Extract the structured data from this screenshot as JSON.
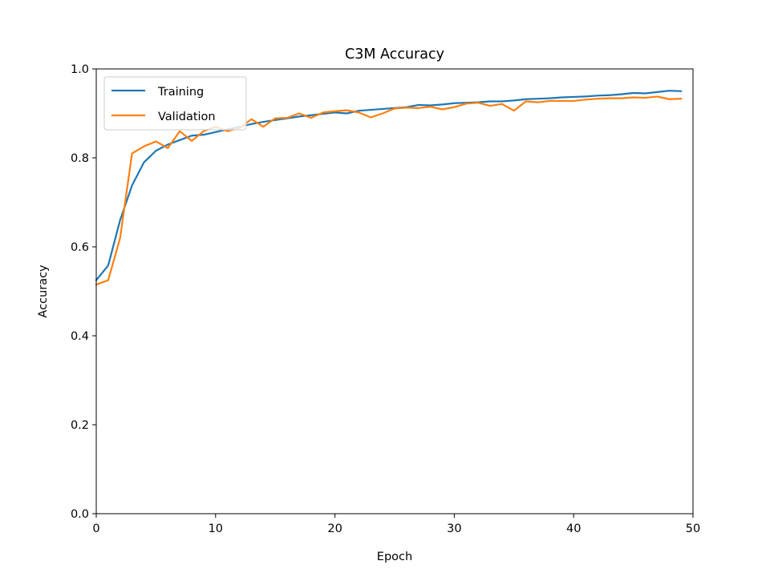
{
  "chart_data": {
    "type": "line",
    "title": "C3M Accuracy",
    "xlabel": "Epoch",
    "ylabel": "Accuracy",
    "xlim": [
      0,
      50
    ],
    "ylim": [
      0,
      1
    ],
    "xticks": [
      0,
      10,
      20,
      30,
      40,
      50
    ],
    "yticks": [
      0.0,
      0.2,
      0.4,
      0.6,
      0.8,
      1.0
    ],
    "ytick_labels": [
      "0.0",
      "0.2",
      "0.4",
      "0.6",
      "0.8",
      "1.0"
    ],
    "grid": false,
    "legend_position": "top-left",
    "x": [
      0,
      1,
      2,
      3,
      4,
      5,
      6,
      7,
      8,
      9,
      10,
      11,
      12,
      13,
      14,
      15,
      16,
      17,
      18,
      19,
      20,
      21,
      22,
      23,
      24,
      25,
      26,
      27,
      28,
      29,
      30,
      31,
      32,
      33,
      34,
      35,
      36,
      37,
      38,
      39,
      40,
      41,
      42,
      43,
      44,
      45,
      46,
      47,
      48,
      49
    ],
    "series": [
      {
        "name": "Training",
        "color": "#1f77b4",
        "values": [
          0.525,
          0.558,
          0.66,
          0.738,
          0.79,
          0.816,
          0.83,
          0.84,
          0.85,
          0.852,
          0.858,
          0.864,
          0.87,
          0.876,
          0.881,
          0.885,
          0.889,
          0.893,
          0.896,
          0.899,
          0.902,
          0.9,
          0.906,
          0.908,
          0.91,
          0.912,
          0.914,
          0.919,
          0.918,
          0.92,
          0.923,
          0.924,
          0.925,
          0.927,
          0.927,
          0.929,
          0.932,
          0.933,
          0.934,
          0.936,
          0.937,
          0.938,
          0.94,
          0.941,
          0.943,
          0.946,
          0.945,
          0.948,
          0.951,
          0.95
        ]
      },
      {
        "name": "Validation",
        "color": "#ff7f0e",
        "values": [
          0.515,
          0.525,
          0.62,
          0.81,
          0.826,
          0.837,
          0.822,
          0.86,
          0.838,
          0.86,
          0.87,
          0.86,
          0.867,
          0.887,
          0.87,
          0.889,
          0.89,
          0.9,
          0.89,
          0.902,
          0.905,
          0.907,
          0.902,
          0.891,
          0.9,
          0.911,
          0.913,
          0.912,
          0.915,
          0.909,
          0.914,
          0.922,
          0.924,
          0.917,
          0.921,
          0.906,
          0.927,
          0.925,
          0.928,
          0.928,
          0.928,
          0.931,
          0.933,
          0.934,
          0.934,
          0.936,
          0.935,
          0.938,
          0.932,
          0.933
        ]
      }
    ]
  }
}
